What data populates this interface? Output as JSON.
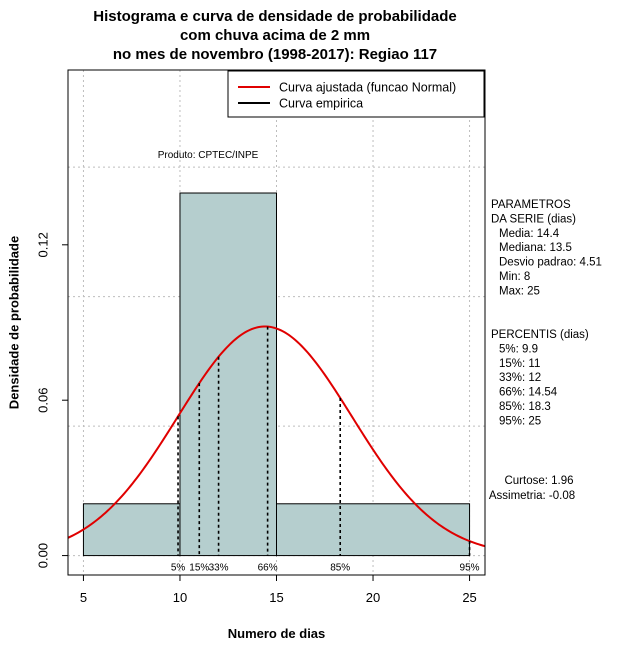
{
  "chart_data": {
    "type": "bar",
    "title": [
      "Histograma e curva de densidade de probabilidade",
      "com chuva acima de 2 mm",
      "no mes de novembro (1998-2017): Regiao 117"
    ],
    "xlabel": "Numero de dias",
    "ylabel": "Densidade de probabilidade",
    "xlim": [
      4.2,
      25.8
    ],
    "ylim": [
      -0.0075,
      0.1875
    ],
    "x_ticks": [
      5,
      10,
      15,
      20,
      25
    ],
    "x_tick_labels": [
      "5",
      "10",
      "15",
      "20",
      "25"
    ],
    "y_ticks": [
      0.0,
      0.06,
      0.12
    ],
    "y_tick_labels": [
      "0.00",
      "0.06",
      "0.12"
    ],
    "grid": true,
    "histogram": {
      "bins": [
        {
          "x0": 5,
          "x1": 10,
          "density": 0.02
        },
        {
          "x0": 10,
          "x1": 15,
          "density": 0.14
        },
        {
          "x0": 15,
          "x1": 25,
          "density": 0.02
        }
      ],
      "fill": "#b5cece"
    },
    "series": [
      {
        "name": "Curva ajustada (funcao Normal)",
        "color": "#e00000",
        "distribution": "normal",
        "mean": 14.4,
        "sd": 4.51
      },
      {
        "name": "Curva empirica",
        "color": "#000000"
      }
    ],
    "legend_position": "top-right",
    "credit": "Produto: CPTEC/INPE",
    "percentile_marks": [
      {
        "label": "5%",
        "x": 9.9
      },
      {
        "label": "15%",
        "x": 11
      },
      {
        "label": "33%",
        "x": 12
      },
      {
        "label": "66%",
        "x": 14.54
      },
      {
        "label": "85%",
        "x": 18.3
      },
      {
        "label": "95%",
        "x": 25
      }
    ],
    "parameters": {
      "heading": [
        "PARAMETROS",
        "DA SERIE (dias)"
      ],
      "lines": [
        "Media: 14.4",
        "Mediana: 13.5",
        "Desvio padrao: 4.51",
        "Min: 8",
        "Max: 25"
      ]
    },
    "percentiles_panel": {
      "heading": "PERCENTIS (dias)",
      "lines": [
        "5%: 9.9",
        "15%: 11",
        "33%: 12",
        "66%: 14.54",
        "85%: 18.3",
        "95%: 25"
      ]
    },
    "shape": {
      "lines": [
        "Curtose: 1.96",
        "Assimetria: -0.08"
      ]
    }
  }
}
